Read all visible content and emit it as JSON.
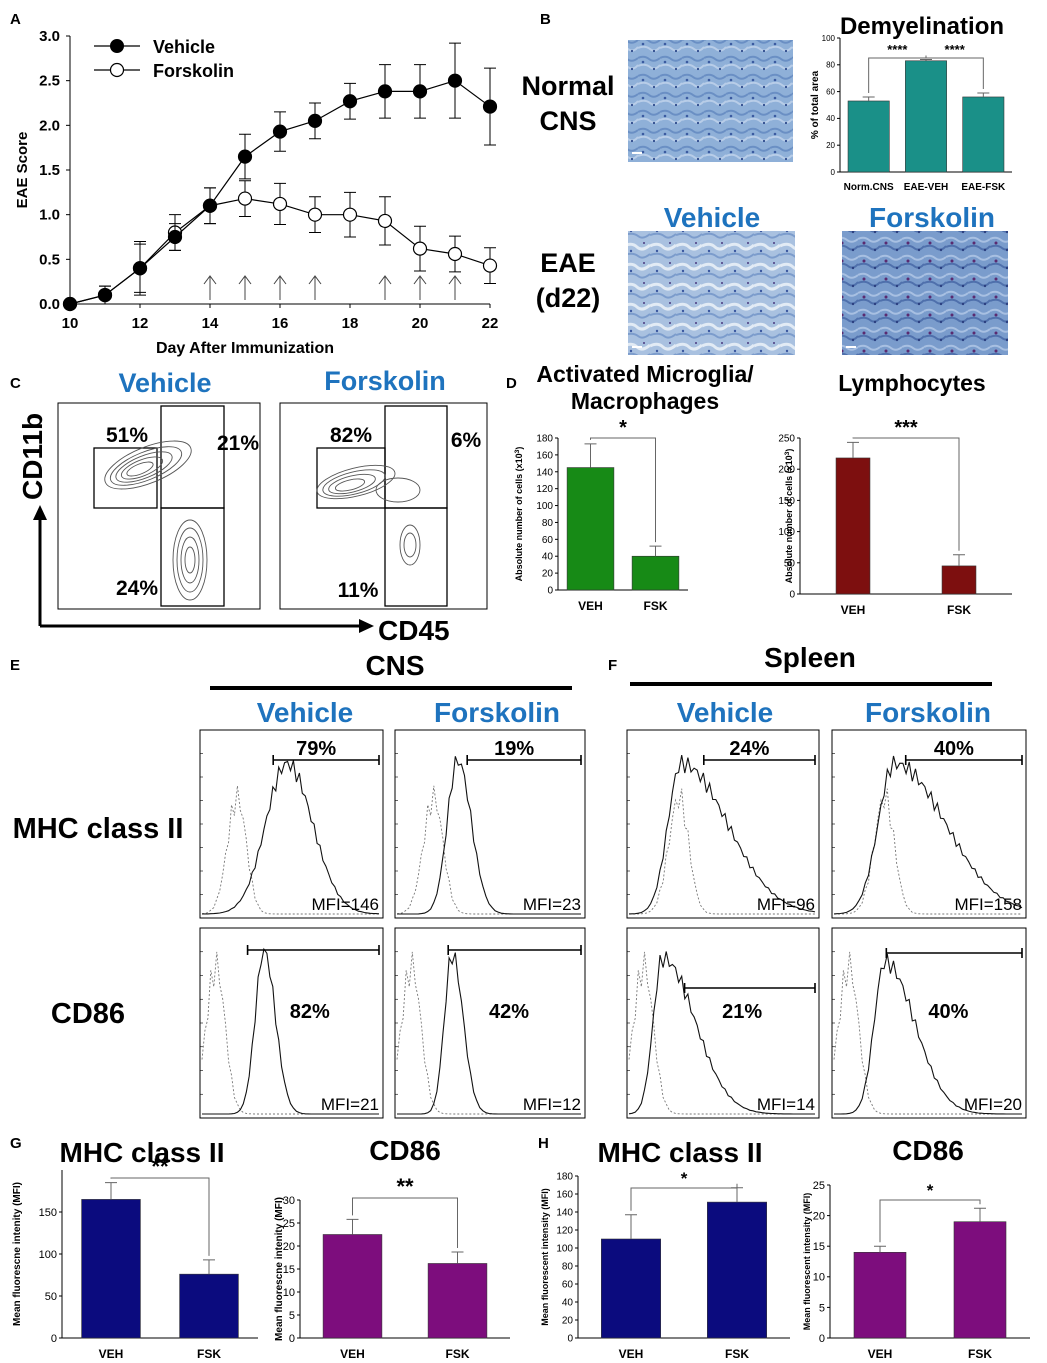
{
  "colors": {
    "blue_title": "#1e73be",
    "teal": "#1a9088",
    "green": "#178a16",
    "maroon": "#7d0f0f",
    "navy": "#0b0b7e",
    "purple": "#7d0d7d"
  },
  "panels": {
    "A": "A",
    "B": "B",
    "C": "C",
    "D": "D",
    "E": "E",
    "F": "F",
    "G": "G",
    "H": "H"
  },
  "panelB": {
    "normal_cns_line1": "Normal",
    "normal_cns_line2": "CNS",
    "eae_line1": "EAE",
    "eae_line2": "(d22)",
    "vehicle_title": "Vehicle",
    "forskolin_title": "Forskolin"
  },
  "panelC": {
    "vehicle_title": "Vehicle",
    "forskolin_title": "Forskolin",
    "y_axis": "CD11b",
    "x_axis": "CD45",
    "vehicle_pct": {
      "top_left": "51%",
      "top_right": "21%",
      "bottom": "24%"
    },
    "forskolin_pct": {
      "top_left": "82%",
      "top_right": "6%",
      "bottom": "11%"
    }
  },
  "panelE": {
    "header": "CNS",
    "vehicle_title": "Vehicle",
    "forskolin_title": "Forskolin",
    "row1_label": "MHC class II",
    "row2_label": "CD86",
    "mhc_vehicle": {
      "pct": "79%",
      "mfi": "MFI=146"
    },
    "mhc_forskolin": {
      "pct": "19%",
      "mfi": "MFI=23"
    },
    "cd86_vehicle": {
      "pct": "82%",
      "mfi": "MFI=21"
    },
    "cd86_forskolin": {
      "pct": "42%",
      "mfi": "MFI=12"
    }
  },
  "panelF": {
    "header": "Spleen",
    "vehicle_title": "Vehicle",
    "forskolin_title": "Forskolin",
    "mhc_vehicle": {
      "pct": "24%",
      "mfi": "MFI=96"
    },
    "mhc_forskolin": {
      "pct": "40%",
      "mfi": "MFI=158"
    },
    "cd86_vehicle": {
      "pct": "21%",
      "mfi": "MFI=14"
    },
    "cd86_forskolin": {
      "pct": "40%",
      "mfi": "MFI=20"
    }
  },
  "chart_data": [
    {
      "id": "A",
      "type": "line",
      "xlabel": "Day After Immunization",
      "ylabel": "EAE Score",
      "xlim": [
        10,
        22
      ],
      "ylim": [
        0,
        3
      ],
      "xticks": [
        "10",
        "12",
        "14",
        "16",
        "18",
        "20",
        "22"
      ],
      "yticks": [
        "0.0",
        "0.5",
        "1.0",
        "1.5",
        "2.0",
        "2.5",
        "3.0"
      ],
      "x": [
        10,
        11,
        12,
        13,
        14,
        15,
        16,
        17,
        18,
        19,
        20,
        21,
        22
      ],
      "series": [
        {
          "name": "Vehicle",
          "marker": "filled",
          "values": [
            0,
            0.1,
            0.4,
            0.75,
            1.1,
            1.65,
            1.93,
            2.05,
            2.27,
            2.38,
            2.38,
            2.5,
            2.21
          ],
          "errors": [
            0,
            0.1,
            0.27,
            0.15,
            0.2,
            0.25,
            0.22,
            0.2,
            0.2,
            0.3,
            0.3,
            0.42,
            0.43
          ]
        },
        {
          "name": "Forskolin",
          "marker": "open",
          "values": [
            0,
            0.1,
            0.4,
            0.8,
            1.1,
            1.18,
            1.12,
            1.0,
            1.0,
            0.93,
            0.62,
            0.56,
            0.43
          ],
          "errors": [
            0,
            0.1,
            0.3,
            0.2,
            0.2,
            0.2,
            0.23,
            0.2,
            0.25,
            0.27,
            0.25,
            0.2,
            0.2
          ]
        }
      ],
      "arrows_at_days": [
        14,
        15,
        16,
        17,
        19,
        20,
        21
      ]
    },
    {
      "id": "B",
      "type": "bar",
      "title": "Demyelination",
      "ylabel": "% of total area",
      "ylim": [
        0,
        100
      ],
      "yticks": [
        "0",
        "20",
        "40",
        "60",
        "80",
        "100"
      ],
      "categories": [
        "Norm.CNS",
        "EAE-VEH",
        "EAE-FSK"
      ],
      "values": [
        53,
        83,
        56
      ],
      "errors": [
        3,
        1,
        3
      ],
      "significance": [
        {
          "from": 0,
          "to": 1,
          "label": "****"
        },
        {
          "from": 1,
          "to": 2,
          "label": "****"
        }
      ]
    },
    {
      "id": "D1",
      "type": "bar",
      "title": "Activated Microglia/ Macrophages",
      "title_line1": "Activated Microglia/",
      "title_line2": "Macrophages",
      "ylabel": "Absolute number of cells (x10",
      "ylabel_sup": "3",
      "ylabel_end": ")",
      "ylim": [
        0,
        180
      ],
      "yticks": [
        "0",
        "20",
        "40",
        "60",
        "80",
        "100",
        "120",
        "140",
        "160",
        "180"
      ],
      "categories": [
        "VEH",
        "FSK"
      ],
      "values": [
        145,
        40
      ],
      "errors": [
        28,
        12
      ],
      "significance": [
        {
          "from": 0,
          "to": 1,
          "label": "*"
        }
      ]
    },
    {
      "id": "D2",
      "type": "bar",
      "title": "Lymphocytes",
      "ylabel": "Absolute number of cells (x10",
      "ylabel_sup": "3",
      "ylabel_end": ")",
      "ylim": [
        0,
        250
      ],
      "yticks": [
        "0",
        "50",
        "100",
        "150",
        "200",
        "250"
      ],
      "categories": [
        "VEH",
        "FSK"
      ],
      "values": [
        218,
        45
      ],
      "errors": [
        25,
        18
      ],
      "significance": [
        {
          "from": 0,
          "to": 1,
          "label": "***"
        }
      ]
    },
    {
      "id": "G1",
      "type": "bar",
      "title": "MHC class II",
      "ylabel": "Mean fluorescne intenity (MFI)",
      "ylim": [
        0,
        200
      ],
      "yticks": [
        "0",
        "50",
        "100",
        "150"
      ],
      "categories": [
        "VEH",
        "FSK"
      ],
      "values": [
        165,
        76
      ],
      "errors": [
        20,
        17
      ],
      "significance": [
        {
          "from": 0,
          "to": 1,
          "label": "**"
        }
      ]
    },
    {
      "id": "G2",
      "type": "bar",
      "title": "CD86",
      "ylabel": "Mean fluorescne intenity (MFI)",
      "ylim": [
        0,
        30
      ],
      "yticks": [
        "0",
        "5",
        "10",
        "15",
        "20",
        "25",
        "30"
      ],
      "categories": [
        "VEH",
        "FSK"
      ],
      "values": [
        22.5,
        16.2
      ],
      "errors": [
        3.3,
        2.5
      ],
      "significance": [
        {
          "from": 0,
          "to": 1,
          "label": "**"
        }
      ]
    },
    {
      "id": "H1",
      "type": "bar",
      "title": "MHC class II",
      "ylabel": "Mean fluorescent intensity (MFI)",
      "ylim": [
        0,
        180
      ],
      "yticks": [
        "0",
        "20",
        "40",
        "60",
        "80",
        "100",
        "120",
        "140",
        "160",
        "180"
      ],
      "categories": [
        "VEH",
        "FSK"
      ],
      "values": [
        110,
        151
      ],
      "errors": [
        27,
        16
      ],
      "significance": [
        {
          "from": 0,
          "to": 1,
          "label": "*"
        }
      ]
    },
    {
      "id": "H2",
      "type": "bar",
      "title": "CD86",
      "ylabel": "Mean fluorescent intensity (MFI)",
      "ylim": [
        0,
        25
      ],
      "yticks": [
        "0",
        "5",
        "10",
        "15",
        "20",
        "25"
      ],
      "categories": [
        "VEH",
        "FSK"
      ],
      "values": [
        14,
        19
      ],
      "errors": [
        1,
        2.2
      ],
      "significance": [
        {
          "from": 0,
          "to": 1,
          "label": "*"
        }
      ]
    }
  ]
}
